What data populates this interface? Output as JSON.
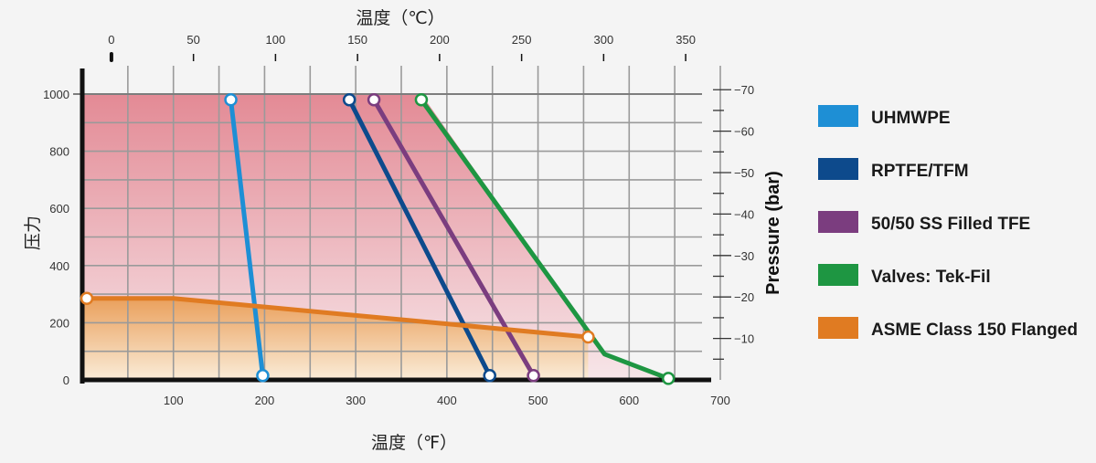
{
  "chart_data": {
    "type": "line",
    "title": "",
    "xlabel_top": "温度（℃）",
    "xlabel_bottom": "温度（℉）",
    "ylabel_left": "压力",
    "ylabel_right": "Pressure (bar)",
    "x_fahrenheit": {
      "lim": [
        0,
        700
      ],
      "ticks": [
        100,
        200,
        300,
        400,
        500,
        600,
        700
      ]
    },
    "x_celsius": {
      "ticks": [
        0,
        50,
        100,
        150,
        200,
        250,
        300,
        350
      ]
    },
    "y_psi": {
      "lim": [
        0,
        1000
      ],
      "ticks": [
        0,
        200,
        400,
        600,
        800,
        1000
      ]
    },
    "y_bar": {
      "ticks": [
        10,
        20,
        30,
        40,
        50,
        60,
        70
      ],
      "labels": [
        "−10",
        "−20",
        "−30",
        "−40",
        "−50",
        "−60",
        "−70"
      ]
    },
    "grid": true,
    "legend_position": "right",
    "series": [
      {
        "name": "UHMWPE",
        "color": "#1e8fd5",
        "points": [
          [
            163,
            980
          ],
          [
            198,
            15
          ]
        ]
      },
      {
        "name": "RPTFE/TFM",
        "color": "#0d4a8c",
        "points": [
          [
            293,
            980
          ],
          [
            447,
            15
          ]
        ]
      },
      {
        "name": "50/50 SS Filled TFE",
        "color": "#7b3d7f",
        "points": [
          [
            320,
            980
          ],
          [
            495,
            15
          ]
        ]
      },
      {
        "name": "Valves: Tek-Fil",
        "color": "#1e9642",
        "points": [
          [
            372,
            980
          ],
          [
            573,
            90
          ],
          [
            643,
            5
          ]
        ]
      },
      {
        "name": "ASME Class 150 Flanged",
        "color": "#e07b22",
        "points": [
          [
            5,
            285
          ],
          [
            100,
            285
          ],
          [
            555,
            150
          ]
        ]
      }
    ]
  }
}
